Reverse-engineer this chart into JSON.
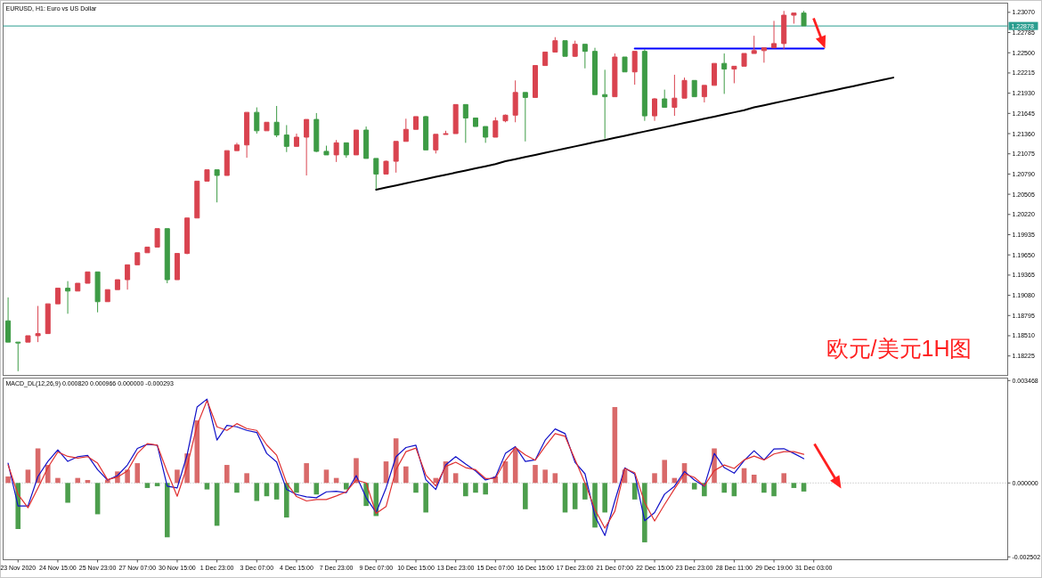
{
  "chart_data": [
    {
      "type": "candlestick",
      "title": "EURUSD, H1: Euro vs US Dollar",
      "annotations": [
        "欧元/美元1H图"
      ],
      "categories": [
        null,
        null,
        null,
        null,
        null,
        null,
        null,
        null,
        null,
        null,
        null,
        null,
        null,
        null,
        null,
        null,
        null,
        null,
        null,
        null,
        null,
        null,
        null,
        null,
        null,
        null,
        null,
        null,
        null,
        null,
        null,
        null,
        null,
        null,
        null,
        null,
        null,
        null,
        null,
        null,
        null,
        null,
        null,
        null,
        null,
        null,
        null,
        null,
        null,
        null,
        null,
        null,
        null,
        null,
        null,
        null,
        null,
        null,
        null,
        null,
        null,
        null,
        null,
        null,
        null,
        null,
        null,
        null,
        null,
        null,
        null,
        null,
        null,
        null,
        null,
        null,
        null,
        null,
        null,
        null,
        null,
        null,
        null,
        null,
        null,
        null,
        null,
        null,
        null,
        null,
        null,
        null,
        null,
        null,
        null,
        null,
        null,
        null,
        null,
        null,
        null
      ],
      "ohlc": [
        [
          1.1872,
          1.1905,
          1.1842,
          1.1842
        ],
        [
          1.1842,
          1.1842,
          1.1801,
          1.1842
        ],
        [
          1.1842,
          1.1851,
          1.1842,
          1.1851
        ],
        [
          1.1851,
          1.1893,
          1.1842,
          1.1854
        ],
        [
          1.1854,
          1.1896,
          1.1854,
          1.1896
        ],
        [
          1.1896,
          1.1918,
          1.1896,
          1.1918
        ],
        [
          1.1918,
          1.1928,
          1.1882,
          1.1914
        ],
        [
          1.1914,
          1.1925,
          1.1914,
          1.1925
        ],
        [
          1.1925,
          1.1941,
          1.1925,
          1.1941
        ],
        [
          1.1941,
          1.1941,
          1.1884,
          1.1899
        ],
        [
          1.1899,
          1.1916,
          1.1899,
          1.1916
        ],
        [
          1.1916,
          1.193,
          1.1916,
          1.193
        ],
        [
          1.193,
          1.1951,
          1.1916,
          1.1951
        ],
        [
          1.1951,
          1.1968,
          1.1951,
          1.1968
        ],
        [
          1.1968,
          1.1976,
          1.1968,
          1.1976
        ],
        [
          1.1976,
          1.2002,
          1.1976,
          1.2002
        ],
        [
          1.2002,
          1.2002,
          1.1925,
          1.193
        ],
        [
          1.193,
          1.1967,
          1.193,
          1.1967
        ],
        [
          1.1967,
          1.2017,
          1.1966,
          1.2017
        ],
        [
          1.2017,
          1.2069,
          1.2017,
          1.2069
        ],
        [
          1.2069,
          1.2085,
          1.2069,
          1.2085
        ],
        [
          1.2085,
          1.2085,
          1.2039,
          1.2077
        ],
        [
          1.2077,
          1.2112,
          1.2077,
          1.2112
        ],
        [
          1.2112,
          1.2123,
          1.2112,
          1.212
        ],
        [
          1.212,
          1.2166,
          1.2102,
          1.2166
        ],
        [
          1.2166,
          1.2173,
          1.2136,
          1.214
        ],
        [
          1.214,
          1.2152,
          1.214,
          1.2152
        ],
        [
          1.2152,
          1.2175,
          1.2131,
          1.2134
        ],
        [
          1.2134,
          1.2148,
          1.211,
          1.2118
        ],
        [
          1.2118,
          1.2136,
          1.2118,
          1.2131
        ],
        [
          1.2131,
          1.2156,
          1.2077,
          1.2156
        ],
        [
          1.2156,
          1.2165,
          1.211,
          1.2111
        ],
        [
          1.2111,
          1.2119,
          1.2106,
          1.2106
        ],
        [
          1.2106,
          1.2127,
          1.2096,
          1.2123
        ],
        [
          1.2123,
          1.2123,
          1.2102,
          1.2106
        ],
        [
          1.2106,
          1.2141,
          1.2106,
          1.2141
        ],
        [
          1.2141,
          1.2146,
          1.2101,
          1.2101
        ],
        [
          1.2101,
          1.2101,
          1.2058,
          1.2079
        ],
        [
          1.2079,
          1.2098,
          1.2079,
          1.2097
        ],
        [
          1.2097,
          1.2125,
          1.2081,
          1.2125
        ],
        [
          1.2125,
          1.2157,
          1.2125,
          1.2142
        ],
        [
          1.2142,
          1.216,
          1.2142,
          1.216
        ],
        [
          1.216,
          1.2161,
          1.2113,
          1.2113
        ],
        [
          1.2113,
          1.2135,
          1.2108,
          1.2135
        ],
        [
          1.2135,
          1.214,
          1.2135,
          1.2136
        ],
        [
          1.2136,
          1.2177,
          1.2136,
          1.2177
        ],
        [
          1.2177,
          1.2177,
          1.2123,
          1.2158
        ],
        [
          1.2158,
          1.2158,
          1.2146,
          1.2146
        ],
        [
          1.2146,
          1.2146,
          1.2123,
          1.2131
        ],
        [
          1.2131,
          1.2159,
          1.2131,
          1.2154
        ],
        [
          1.2154,
          1.2163,
          1.2152,
          1.2162
        ],
        [
          1.2162,
          1.2211,
          1.2152,
          1.2194
        ],
        [
          1.2194,
          1.2194,
          1.2125,
          1.2187
        ],
        [
          1.2187,
          1.2232,
          1.2187,
          1.2232
        ],
        [
          1.2232,
          1.2251,
          1.2232,
          1.2251
        ],
        [
          1.2251,
          1.2272,
          1.2251,
          1.2267
        ],
        [
          1.2267,
          1.2267,
          1.2245,
          1.2245
        ],
        [
          1.2245,
          1.2267,
          1.2244,
          1.2262
        ],
        [
          1.2262,
          1.2262,
          1.2228,
          1.2252
        ],
        [
          1.2252,
          1.2257,
          1.2191,
          1.2191
        ],
        [
          1.2191,
          1.2226,
          1.2129,
          1.2188
        ],
        [
          1.2188,
          1.2249,
          1.2188,
          1.2244
        ],
        [
          1.2244,
          1.2244,
          1.2223,
          1.2223
        ],
        [
          1.2223,
          1.2252,
          1.2205,
          1.2252
        ],
        [
          1.2252,
          1.2255,
          1.2154,
          1.2161
        ],
        [
          1.2161,
          1.2186,
          1.2154,
          1.2185
        ],
        [
          1.2185,
          1.2198,
          1.2173,
          1.2173
        ],
        [
          1.2173,
          1.2219,
          1.2161,
          1.2186
        ],
        [
          1.2186,
          1.2215,
          1.2186,
          1.2211
        ],
        [
          1.2211,
          1.2211,
          1.2188,
          1.2188
        ],
        [
          1.2188,
          1.2204,
          1.218,
          1.2204
        ],
        [
          1.2204,
          1.2235,
          1.2204,
          1.2235
        ],
        [
          1.2235,
          1.2249,
          1.2192,
          1.2227
        ],
        [
          1.2227,
          1.2231,
          1.2207,
          1.2231
        ],
        [
          1.2231,
          1.2249,
          1.2231,
          1.2249
        ],
        [
          1.2249,
          1.2274,
          1.2249,
          1.2253
        ],
        [
          1.2253,
          1.2257,
          1.2236,
          1.2257
        ],
        [
          1.2257,
          1.2295,
          1.2257,
          1.2263
        ],
        [
          1.2263,
          1.2309,
          1.2255,
          1.2303
        ],
        [
          1.2303,
          1.2306,
          1.2291,
          1.2306
        ],
        [
          1.2306,
          1.2309,
          1.2288,
          1.2288
        ],
        null,
        null,
        null,
        null,
        null,
        null,
        null,
        null,
        null,
        null,
        null,
        null,
        null,
        null,
        null,
        null,
        null,
        null,
        null,
        null
      ],
      "colors": [
        "#3d9b45",
        "#3d9b45",
        "#d9434f",
        "#d9434f",
        "#d9434f",
        "#d9434f",
        "#3d9b45",
        "#d9434f",
        "#d9434f",
        "#3d9b45",
        "#d9434f",
        "#d9434f",
        "#d9434f",
        "#d9434f",
        "#d9434f",
        "#d9434f",
        "#3d9b45",
        "#d9434f",
        "#d9434f",
        "#d9434f",
        "#d9434f",
        "#3d9b45",
        "#d9434f",
        "#d9434f",
        "#d9434f",
        "#3d9b45",
        "#d9434f",
        "#3d9b45",
        "#3d9b45",
        "#d9434f",
        "#d9434f",
        "#3d9b45",
        "#3d9b45",
        "#d9434f",
        "#3d9b45",
        "#d9434f",
        "#3d9b45",
        "#3d9b45",
        "#d9434f",
        "#d9434f",
        "#d9434f",
        "#d9434f",
        "#3d9b45",
        "#d9434f",
        "#d9434f",
        "#d9434f",
        "#3d9b45",
        "#3d9b45",
        "#3d9b45",
        "#d9434f",
        "#d9434f",
        "#d9434f",
        "#3d9b45",
        "#d9434f",
        "#d9434f",
        "#d9434f",
        "#3d9b45",
        "#d9434f",
        "#3d9b45",
        "#3d9b45",
        "#3d9b45",
        "#d9434f",
        "#3d9b45",
        "#d9434f",
        "#3d9b45",
        "#d9434f",
        "#3d9b45",
        "#d9434f",
        "#d9434f",
        "#3d9b45",
        "#d9434f",
        "#d9434f",
        "#3d9b45",
        "#d9434f",
        "#d9434f",
        "#d9434f",
        "#d9434f",
        "#d9434f",
        "#d9434f",
        "#d9434f",
        "#3d9b45",
        null,
        null,
        null,
        null,
        null,
        null,
        null,
        null,
        null,
        null,
        null,
        null,
        null,
        null,
        null,
        null,
        null,
        null,
        null,
        null
      ],
      "series": [
        {
          "type": "line",
          "color": "#000000",
          "values": [
            null,
            null,
            null,
            null,
            null,
            null,
            null,
            null,
            null,
            null,
            null,
            null,
            null,
            null,
            null,
            null,
            null,
            null,
            null,
            null,
            null,
            null,
            null,
            null,
            null,
            null,
            null,
            null,
            null,
            null,
            null,
            null,
            null,
            null,
            null,
            null,
            null,
            1.2057,
            1.206,
            1.2063,
            1.2066,
            1.2069,
            1.2072,
            1.2075,
            1.2078,
            1.2081,
            1.2084,
            1.2087,
            1.209,
            1.2093,
            1.2097,
            1.21,
            1.2103,
            1.2106,
            1.2109,
            1.2112,
            1.2115,
            1.2118,
            1.2121,
            1.2124,
            1.2127,
            1.213,
            1.2133,
            1.2136,
            1.2139,
            1.2142,
            1.2145,
            1.2148,
            1.2151,
            1.2154,
            1.2157,
            1.216,
            1.2163,
            1.2166,
            1.2169,
            1.2173,
            1.2176,
            1.2179,
            1.2182,
            1.2185,
            1.2188,
            1.2191,
            1.2194,
            1.2197,
            1.22,
            1.2203,
            1.2206,
            1.2209,
            1.2212,
            1.2215,
            null,
            null,
            null,
            null,
            null,
            null,
            null,
            null,
            null,
            null,
            null
          ]
        },
        {
          "type": "line",
          "color": "#0000ff",
          "values": [
            null,
            null,
            null,
            null,
            null,
            null,
            null,
            null,
            null,
            null,
            null,
            null,
            null,
            null,
            null,
            null,
            null,
            null,
            null,
            null,
            null,
            null,
            null,
            null,
            null,
            null,
            null,
            null,
            null,
            null,
            null,
            null,
            null,
            null,
            null,
            null,
            null,
            null,
            null,
            null,
            null,
            null,
            null,
            null,
            null,
            null,
            null,
            null,
            null,
            null,
            null,
            null,
            null,
            null,
            null,
            null,
            null,
            null,
            null,
            null,
            null,
            null,
            null,
            1.2256,
            1.2256,
            1.2256,
            1.2256,
            1.2256,
            1.2256,
            1.2256,
            1.2256,
            1.2256,
            1.2256,
            1.2256,
            1.2256,
            1.2256,
            1.2256,
            1.2256,
            1.2256,
            1.2256,
            1.2256,
            1.2256,
            1.2256,
            null,
            null,
            null,
            null,
            null,
            null,
            null,
            null,
            null,
            null,
            null,
            null,
            null,
            null,
            null,
            null,
            null,
            null
          ]
        }
      ],
      "ref_lines": [
        {
          "axis": "y",
          "value": 1.22878,
          "label": "1.22878",
          "color": "#2a9d8f"
        }
      ],
      "ylim": [
        1.1795,
        1.232
      ],
      "yticks": [
        {
          "value": 1.2307,
          "label": "1.23070"
        },
        {
          "value": 1.22785,
          "label": "1.22785"
        },
        {
          "value": 1.225,
          "label": "1.22500"
        },
        {
          "value": 1.22215,
          "label": "1.22215"
        },
        {
          "value": 1.2193,
          "label": "1.21930"
        },
        {
          "value": 1.21645,
          "label": "1.21645"
        },
        {
          "value": 1.2136,
          "label": "1.21360"
        },
        {
          "value": 1.21075,
          "label": "1.21075"
        },
        {
          "value": 1.2079,
          "label": "1.20790"
        },
        {
          "value": 1.20505,
          "label": "1.20505"
        },
        {
          "value": 1.2022,
          "label": "1.20220"
        },
        {
          "value": 1.19935,
          "label": "1.19935"
        },
        {
          "value": 1.1965,
          "label": "1.19650"
        },
        {
          "value": 1.19365,
          "label": "1.19365"
        },
        {
          "value": 1.1908,
          "label": "1.19080"
        },
        {
          "value": 1.18795,
          "label": "1.18795"
        },
        {
          "value": 1.1851,
          "label": "1.18510"
        },
        {
          "value": 1.18225,
          "label": "1.18225"
        }
      ],
      "tick_labels": "y"
    },
    {
      "type": "bar",
      "title": "MACD_DL(12,26,9) 0.000820 0.000966 0.000000 -0.000293",
      "categories": [
        null,
        "23 Nov 2020",
        null,
        null,
        null,
        "24 Nov 15:00",
        null,
        null,
        null,
        "25 Nov 23:00",
        null,
        null,
        null,
        "27 Nov 07:00",
        null,
        null,
        null,
        "30 Nov 15:00",
        null,
        null,
        null,
        "1 Dec 23:00",
        null,
        null,
        null,
        "3 Dec 07:00",
        null,
        null,
        null,
        "4 Dec 15:00",
        null,
        null,
        null,
        "7 Dec 23:00",
        null,
        null,
        null,
        "9 Dec 07:00",
        null,
        null,
        null,
        "10 Dec 15:00",
        null,
        null,
        null,
        "13 Dec 23:00",
        null,
        null,
        null,
        "15 Dec 07:00",
        null,
        null,
        null,
        "16 Dec 15:00",
        null,
        null,
        null,
        "17 Dec 23:00",
        null,
        null,
        null,
        "21 Dec 07:00",
        null,
        null,
        null,
        "22 Dec 15:00",
        null,
        null,
        null,
        "23 Dec 23:00",
        null,
        null,
        null,
        "28 Dec 11:00",
        null,
        null,
        null,
        "29 Dec 19:00",
        null,
        null,
        null,
        "31 Dec 03:00",
        null,
        null,
        null,
        null,
        null,
        null,
        null,
        null,
        null,
        null,
        null,
        null,
        null,
        null,
        null,
        null,
        null,
        null,
        null
      ],
      "series": [
        {
          "values": [
            0.00022,
            -0.00156,
            0.00045,
            0.00117,
            0.00061,
            0.00017,
            -0.00067,
            0.00017,
            0.0001,
            -0.00106,
            0.00011,
            0.00039,
            0.00045,
            0.00067,
            -0.00017,
            -0.00011,
            -0.00184,
            0.00045,
            0.001,
            0.00212,
            -0.00022,
            -0.00145,
            0.00061,
            -0.00033,
            0.00033,
            -0.00061,
            -0.00045,
            -0.00056,
            -0.00117,
            -0.00033,
            0.00067,
            -0.00039,
            0.00045,
            0.00017,
            -0.00022,
            0.00084,
            -0.00078,
            -0.00112,
            0.00073,
            0.00151,
            0.00056,
            -0.00033,
            -0.001,
            0.00017,
            0.00073,
            0.00033,
            -0.00045,
            -0.00033,
            -0.00039,
            0.00022,
            0.00073,
            0.00117,
            -0.00089,
            0.00061,
            0.00045,
            0.00033,
            -0.001,
            -0.00089,
            -0.00056,
            -0.00151,
            -0.001,
            0.00257,
            0.00045,
            -0.00056,
            -0.00201,
            0.00033,
            0.00078,
            0.00017,
            0.00067,
            -0.00022,
            -0.00045,
            0.00117,
            -0.00033,
            -0.00045,
            0.0005,
            0.00028,
            -0.00033,
            -0.00045,
            0.00033,
            -0.00017,
            -0.00029,
            null,
            null,
            null,
            null,
            null,
            null,
            null,
            null,
            null,
            null,
            null,
            null,
            null,
            null,
            null,
            null,
            null,
            null,
            null,
            null
          ],
          "colors": [
            "#d96a6a",
            "#4d9e4d",
            "#d96a6a",
            "#d96a6a",
            "#d96a6a",
            "#d96a6a",
            "#4d9e4d",
            "#d96a6a",
            "#d96a6a",
            "#4d9e4d",
            "#d96a6a",
            "#d96a6a",
            "#d96a6a",
            "#d96a6a",
            "#4d9e4d",
            "#4d9e4d",
            "#4d9e4d",
            "#d96a6a",
            "#d96a6a",
            "#d96a6a",
            "#4d9e4d",
            "#4d9e4d",
            "#d96a6a",
            "#4d9e4d",
            "#d96a6a",
            "#4d9e4d",
            "#4d9e4d",
            "#4d9e4d",
            "#4d9e4d",
            "#4d9e4d",
            "#d96a6a",
            "#4d9e4d",
            "#d96a6a",
            "#d96a6a",
            "#4d9e4d",
            "#d96a6a",
            "#4d9e4d",
            "#4d9e4d",
            "#d96a6a",
            "#d96a6a",
            "#d96a6a",
            "#4d9e4d",
            "#4d9e4d",
            "#d96a6a",
            "#d96a6a",
            "#d96a6a",
            "#4d9e4d",
            "#4d9e4d",
            "#4d9e4d",
            "#d96a6a",
            "#d96a6a",
            "#d96a6a",
            "#4d9e4d",
            "#d96a6a",
            "#d96a6a",
            "#d96a6a",
            "#4d9e4d",
            "#4d9e4d",
            "#4d9e4d",
            "#4d9e4d",
            "#4d9e4d",
            "#d96a6a",
            "#d96a6a",
            "#4d9e4d",
            "#4d9e4d",
            "#d96a6a",
            "#d96a6a",
            "#d96a6a",
            "#d96a6a",
            "#4d9e4d",
            "#4d9e4d",
            "#d96a6a",
            "#4d9e4d",
            "#4d9e4d",
            "#d96a6a",
            "#d96a6a",
            "#4d9e4d",
            "#4d9e4d",
            "#d96a6a",
            "#4d9e4d",
            "#4d9e4d",
            null,
            null,
            null,
            null,
            null,
            null,
            null,
            null,
            null,
            null,
            null,
            null,
            null,
            null,
            null,
            null,
            null,
            null,
            null,
            null
          ]
        },
        {
          "type": "line",
          "color": "#1010c8",
          "values": [
            0.00067,
            -0.00078,
            -0.00078,
            0.00022,
            0.00073,
            0.00112,
            0.00073,
            0.00089,
            0.00093,
            0.00045,
            0.0001,
            0.00025,
            0.00061,
            0.00117,
            0.00131,
            0.00128,
            -0.00011,
            -0.00017,
            0.00095,
            0.00257,
            0.00284,
            0.00145,
            0.00195,
            0.0019,
            0.00178,
            0.00171,
            0.001,
            0.00071,
            -0.00022,
            -0.00039,
            -0.00047,
            -0.0005,
            -0.0003,
            -0.00028,
            -0.00033,
            0.00025,
            -0.0005,
            -0.001,
            -0.00017,
            0.00089,
            0.0012,
            0.00128,
            0.00011,
            -0.00022,
            0.00061,
            0.00089,
            0.00064,
            0.00041,
            0.0001,
            0.0002,
            0.001,
            0.00123,
            0.00073,
            0.00078,
            0.00145,
            0.00183,
            0.00167,
            0.0007,
            0.00031,
            -0.00112,
            -0.00178,
            -0.00061,
            0.00051,
            0.0003,
            -0.00128,
            -0.001,
            -0.00038,
            -0.00011,
            0.00039,
            0.0001,
            -0.00011,
            0.001,
            0.00052,
            0.00033,
            0.00076,
            0.00109,
            0.00078,
            0.00115,
            0.00116,
            0.001,
            0.00082,
            null,
            null,
            null,
            null,
            null,
            null,
            null,
            null,
            null,
            null,
            null,
            null,
            null,
            null,
            null,
            null,
            null,
            null,
            null,
            null
          ]
        },
        {
          "type": "line",
          "color": "#e03030",
          "values": [
            0.00061,
            -0.00039,
            -0.00084,
            -0.00017,
            0.00052,
            0.00105,
            0.0009,
            0.00084,
            0.00089,
            0.00067,
            0.00011,
            0.0002,
            0.00041,
            0.001,
            0.00133,
            0.00128,
            0.00037,
            -0.00045,
            0.00056,
            0.00195,
            0.00279,
            0.0019,
            0.00178,
            0.00201,
            0.00184,
            0.00178,
            0.00129,
            0.00094,
            0,
            -0.00046,
            -0.00061,
            -0.00056,
            -0.00056,
            -0.00044,
            -0.0003,
            0.0001,
            0,
            -0.00103,
            -0.0008,
            0.00045,
            0.00106,
            0.00118,
            0.00027,
            -0.0001,
            0.00056,
            0.0007,
            0.00052,
            0.00045,
            0.00015,
            0.00016,
            0.00076,
            0.0012,
            0.00095,
            0.00077,
            0.00124,
            0.00167,
            0.00158,
            0.00079,
            0,
            -0.0009,
            -0.00153,
            -0.00096,
            0.00049,
            0.00035,
            -0.00066,
            -0.00129,
            -0.00073,
            -0.0002,
            0.00031,
            0.00019,
            -0.0001,
            0.00042,
            0.00061,
            0.00049,
            0.00078,
            0.00091,
            0.00078,
            0.00098,
            0.00106,
            0.00106,
            0.00097,
            null,
            null,
            null,
            null,
            null,
            null,
            null,
            null,
            null,
            null,
            null,
            null,
            null,
            null,
            null,
            null,
            null,
            null,
            null,
            null
          ]
        }
      ],
      "ref_lines": [
        {
          "axis": "y",
          "value": 0,
          "color": "#b0b0b0",
          "line_style": "dotted"
        }
      ],
      "ylim": [
        -0.0026,
        0.00355
      ],
      "yticks": [
        {
          "value": 0.003468,
          "label": "0.003468"
        },
        {
          "value": 0,
          "label": "0.000000"
        },
        {
          "value": -0.002502,
          "label": "-0.002502"
        }
      ]
    }
  ]
}
